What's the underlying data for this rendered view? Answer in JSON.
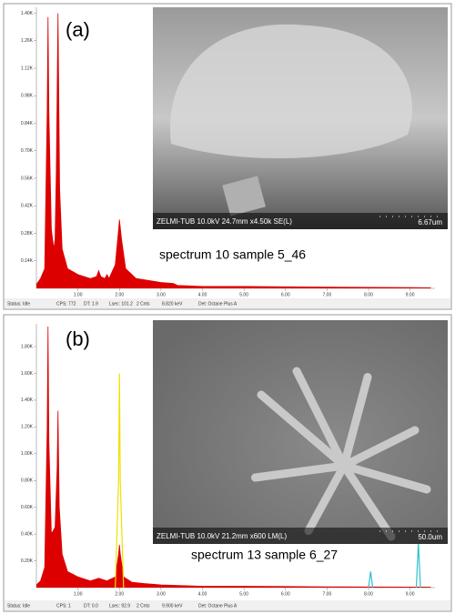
{
  "chart_data": [
    {
      "type": "area",
      "panel_label": "(a)",
      "caption": "spectrum 10 sample 5_46",
      "image_text": "ZELMI-TUB 10.0kV 24.7mm x4.50k SE(L)",
      "image_scale": "6.67um",
      "status_bar": [
        "Status: Idle",
        "CPS: 772",
        "DT: 1.9",
        "Lsec: 101.2",
        "2 Cnts",
        "8.820 keV",
        "Det: Octane Plus A"
      ],
      "x": [
        0,
        0.1,
        0.2,
        0.26,
        0.28,
        0.3,
        0.36,
        0.42,
        0.45,
        0.48,
        0.52,
        0.56,
        0.62,
        0.75,
        1.0,
        1.3,
        1.45,
        1.5,
        1.55,
        1.65,
        1.7,
        1.75,
        1.9,
        1.98,
        2.0,
        2.05,
        2.15,
        2.4,
        3.0,
        3.3,
        3.4,
        4.0,
        5.0,
        6.0,
        7.0,
        8.0,
        9.0,
        9.5
      ],
      "series": [
        {
          "color": "#dd0000",
          "fill": true,
          "values": [
            0.02,
            0.05,
            0.1,
            0.9,
            1.38,
            0.9,
            0.3,
            0.2,
            0.25,
            0.6,
            1.4,
            0.5,
            0.2,
            0.1,
            0.07,
            0.05,
            0.06,
            0.09,
            0.06,
            0.05,
            0.07,
            0.05,
            0.12,
            0.3,
            0.35,
            0.25,
            0.1,
            0.05,
            0.03,
            0.025,
            0.015,
            0.01,
            0.01,
            0.008,
            0.006,
            0.005,
            0.004,
            0.003
          ]
        }
      ],
      "xlim": [
        0,
        9.6
      ],
      "ylim": [
        0,
        1.43
      ],
      "xticks": [
        {
          "value": 1,
          "label": "1.00"
        },
        {
          "value": 2,
          "label": "2.00"
        },
        {
          "value": 3,
          "label": "3.00"
        },
        {
          "value": 4,
          "label": "4.00"
        },
        {
          "value": 5,
          "label": "5.00"
        },
        {
          "value": 6,
          "label": "6.00"
        },
        {
          "value": 7,
          "label": "7.00"
        },
        {
          "value": 8,
          "label": "8.00"
        },
        {
          "value": 9,
          "label": "9.00"
        }
      ],
      "yticks": [
        {
          "value": 0.14,
          "label": "0.14K"
        },
        {
          "value": 0.28,
          "label": "0.28K"
        },
        {
          "value": 0.42,
          "label": "0.42K"
        },
        {
          "value": 0.56,
          "label": "0.56K"
        },
        {
          "value": 0.7,
          "label": "0.70K"
        },
        {
          "value": 0.84,
          "label": "0.84K"
        },
        {
          "value": 0.98,
          "label": "0.98K"
        },
        {
          "value": 1.12,
          "label": "1.12K"
        },
        {
          "value": 1.26,
          "label": "1.26K"
        },
        {
          "value": 1.4,
          "label": "1.40K"
        }
      ]
    },
    {
      "type": "area",
      "panel_label": "(b)",
      "caption": "spectrum 13 sample 6_27",
      "image_text": "ZELMI-TUB 10.0kV 21.2mm x600 LM(L)",
      "image_scale": "50.0um",
      "status_bar": [
        "Status: Idle",
        "CPS: 1",
        "DT: 0.0",
        "Lsec: 92.9",
        "2 Cnts",
        "9.900 keV",
        "Det: Octane Plus A"
      ],
      "x": [
        0,
        0.1,
        0.2,
        0.26,
        0.28,
        0.3,
        0.36,
        0.45,
        0.5,
        0.52,
        0.55,
        0.62,
        0.75,
        1.0,
        1.3,
        1.5,
        1.7,
        1.9,
        1.98,
        2.0,
        2.02,
        2.1,
        2.3,
        2.6,
        3.0,
        4.0,
        5.0,
        6.0,
        7.0,
        8.0,
        8.05,
        8.1,
        9.0,
        9.15,
        9.2,
        9.25,
        9.5
      ],
      "series": [
        {
          "color": "#dd0000",
          "fill": true,
          "values": [
            0.02,
            0.05,
            0.15,
            1.2,
            1.95,
            1.1,
            0.4,
            0.45,
            0.9,
            1.32,
            0.6,
            0.25,
            0.12,
            0.08,
            0.05,
            0.07,
            0.05,
            0.08,
            0.25,
            0.32,
            0.25,
            0.08,
            0.04,
            0.03,
            0.02,
            0.01,
            0.01,
            0.008,
            0.006,
            0.005,
            0.005,
            0.005,
            0.004,
            0.004,
            0.004,
            0.004,
            0.003
          ]
        },
        {
          "color": "#f0e000",
          "fill": false,
          "values": [
            null,
            null,
            null,
            null,
            null,
            null,
            null,
            null,
            null,
            null,
            null,
            null,
            null,
            null,
            null,
            null,
            null,
            0,
            0.8,
            1.6,
            0.8,
            0,
            null,
            null,
            null,
            null,
            null,
            null,
            null,
            null,
            null,
            null,
            null,
            null,
            null,
            null,
            null
          ]
        },
        {
          "color": "#30c0d0",
          "fill": false,
          "values": [
            null,
            null,
            null,
            null,
            null,
            null,
            null,
            null,
            null,
            null,
            null,
            null,
            null,
            null,
            null,
            null,
            null,
            null,
            null,
            null,
            null,
            null,
            null,
            null,
            null,
            null,
            null,
            null,
            null,
            0,
            0.12,
            0,
            null,
            0,
            0.33,
            0,
            null
          ]
        }
      ],
      "xlim": [
        0,
        9.6
      ],
      "ylim": [
        0,
        1.97
      ],
      "xticks": [
        {
          "value": 1,
          "label": "1.00"
        },
        {
          "value": 2,
          "label": "2.00"
        },
        {
          "value": 3,
          "label": "3.00"
        },
        {
          "value": 4,
          "label": "4.00"
        },
        {
          "value": 5,
          "label": "5.00"
        },
        {
          "value": 6,
          "label": "6.00"
        },
        {
          "value": 7,
          "label": "7.00"
        },
        {
          "value": 8,
          "label": "8.00"
        },
        {
          "value": 9,
          "label": "9.00"
        }
      ],
      "yticks": [
        {
          "value": 0.2,
          "label": "0.20K"
        },
        {
          "value": 0.4,
          "label": "0.40K"
        },
        {
          "value": 0.6,
          "label": "0.60K"
        },
        {
          "value": 0.8,
          "label": "0.80K"
        },
        {
          "value": 1,
          "label": "1.00K"
        },
        {
          "value": 1.2,
          "label": "1.20K"
        },
        {
          "value": 1.4,
          "label": "1.40K"
        },
        {
          "value": 1.6,
          "label": "1.60K"
        },
        {
          "value": 1.8,
          "label": "1.80K"
        }
      ]
    }
  ]
}
